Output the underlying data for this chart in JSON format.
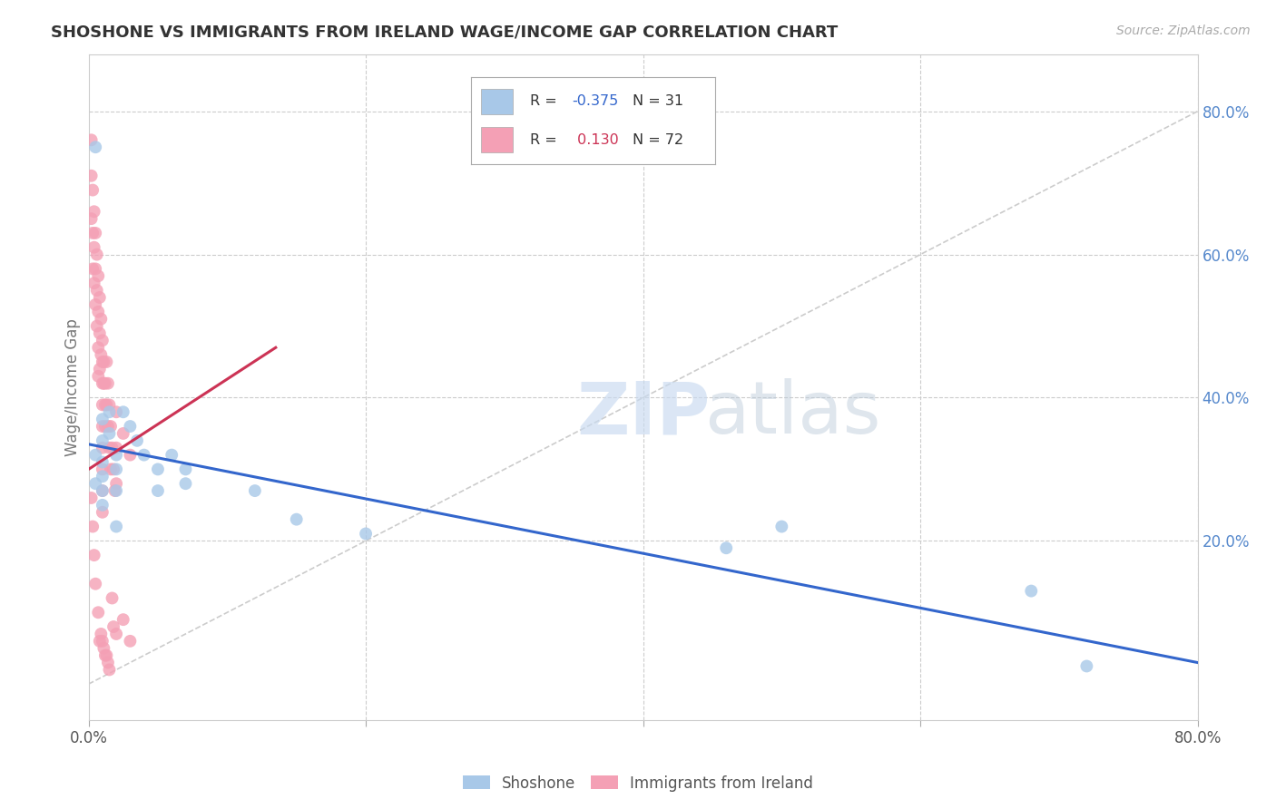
{
  "title": "SHOSHONE VS IMMIGRANTS FROM IRELAND WAGE/INCOME GAP CORRELATION CHART",
  "source_text": "Source: ZipAtlas.com",
  "ylabel": "Wage/Income Gap",
  "xlim": [
    0.0,
    0.8
  ],
  "ylim": [
    -0.05,
    0.88
  ],
  "blue_color": "#a8c8e8",
  "pink_color": "#f4a0b5",
  "blue_line_color": "#3366cc",
  "pink_line_color": "#cc3355",
  "legend_R_blue": "-0.375",
  "legend_N_blue": "31",
  "legend_R_pink": "0.130",
  "legend_N_pink": "72",
  "blue_label": "Shoshone",
  "pink_label": "Immigrants from Ireland",
  "background_color": "#ffffff",
  "grid_color": "#cccccc",
  "blue_scatter_x": [
    0.005,
    0.005,
    0.005,
    0.01,
    0.01,
    0.01,
    0.01,
    0.01,
    0.01,
    0.015,
    0.015,
    0.02,
    0.02,
    0.02,
    0.02,
    0.025,
    0.03,
    0.035,
    0.04,
    0.05,
    0.05,
    0.06,
    0.07,
    0.07,
    0.12,
    0.15,
    0.2,
    0.46,
    0.5,
    0.68,
    0.72
  ],
  "blue_scatter_y": [
    0.75,
    0.32,
    0.28,
    0.37,
    0.34,
    0.31,
    0.29,
    0.27,
    0.25,
    0.38,
    0.35,
    0.32,
    0.3,
    0.27,
    0.22,
    0.38,
    0.36,
    0.34,
    0.32,
    0.3,
    0.27,
    0.32,
    0.3,
    0.28,
    0.27,
    0.23,
    0.21,
    0.19,
    0.22,
    0.13,
    0.025
  ],
  "pink_scatter_x": [
    0.002,
    0.002,
    0.002,
    0.002,
    0.003,
    0.003,
    0.003,
    0.003,
    0.004,
    0.004,
    0.004,
    0.004,
    0.005,
    0.005,
    0.005,
    0.005,
    0.006,
    0.006,
    0.006,
    0.007,
    0.007,
    0.007,
    0.007,
    0.007,
    0.008,
    0.008,
    0.008,
    0.008,
    0.009,
    0.009,
    0.009,
    0.01,
    0.01,
    0.01,
    0.01,
    0.01,
    0.01,
    0.01,
    0.01,
    0.01,
    0.01,
    0.011,
    0.011,
    0.011,
    0.012,
    0.012,
    0.012,
    0.012,
    0.013,
    0.013,
    0.013,
    0.014,
    0.014,
    0.014,
    0.015,
    0.015,
    0.015,
    0.016,
    0.016,
    0.017,
    0.017,
    0.018,
    0.018,
    0.019,
    0.02,
    0.02,
    0.02,
    0.02,
    0.025,
    0.025,
    0.03,
    0.03
  ],
  "pink_scatter_y": [
    0.76,
    0.71,
    0.65,
    0.26,
    0.69,
    0.63,
    0.58,
    0.22,
    0.66,
    0.61,
    0.56,
    0.18,
    0.63,
    0.58,
    0.53,
    0.14,
    0.6,
    0.55,
    0.5,
    0.57,
    0.52,
    0.47,
    0.43,
    0.1,
    0.54,
    0.49,
    0.44,
    0.06,
    0.51,
    0.46,
    0.07,
    0.48,
    0.45,
    0.42,
    0.39,
    0.36,
    0.33,
    0.3,
    0.27,
    0.24,
    0.06,
    0.45,
    0.42,
    0.05,
    0.42,
    0.39,
    0.36,
    0.04,
    0.45,
    0.39,
    0.04,
    0.42,
    0.36,
    0.03,
    0.39,
    0.33,
    0.02,
    0.36,
    0.3,
    0.33,
    0.12,
    0.3,
    0.08,
    0.27,
    0.38,
    0.33,
    0.28,
    0.07,
    0.35,
    0.09,
    0.32,
    0.06
  ],
  "blue_line_x": [
    0.0,
    0.8
  ],
  "blue_line_y": [
    0.335,
    0.03
  ],
  "pink_line_x": [
    0.0,
    0.135
  ],
  "pink_line_y": [
    0.3,
    0.47
  ],
  "diag_line_x": [
    0.0,
    0.8
  ],
  "diag_line_y": [
    0.0,
    0.8
  ],
  "yticks_right": [
    0.2,
    0.4,
    0.6,
    0.8
  ],
  "yticklabels_right": [
    "20.0%",
    "40.0%",
    "60.0%",
    "80.0%"
  ]
}
